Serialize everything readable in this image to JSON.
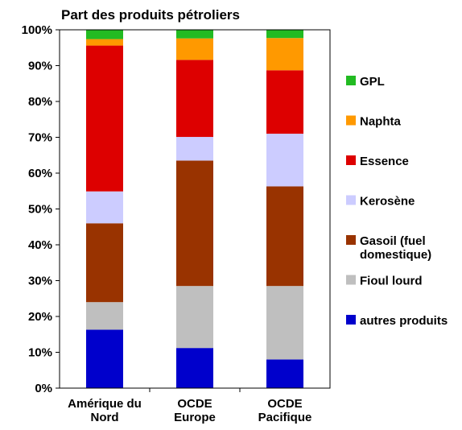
{
  "chart_data": {
    "type": "bar",
    "stacked": true,
    "title": "Part des produits pétroliers",
    "xlabel": "",
    "ylabel": "",
    "ylim": [
      0,
      100
    ],
    "ytick_labels": [
      "0%",
      "10%",
      "20%",
      "30%",
      "40%",
      "50%",
      "60%",
      "70%",
      "80%",
      "90%",
      "100%"
    ],
    "categories": [
      [
        "Amérique du",
        "Nord"
      ],
      [
        "OCDE",
        "Europe"
      ],
      [
        "OCDE",
        "Pacifique"
      ]
    ],
    "series": [
      {
        "name": "autres produits",
        "color": "#0000cc",
        "values": [
          16.3,
          11.2,
          8.0
        ]
      },
      {
        "name": "Fioul lourd",
        "color": "#bfbfbf",
        "values": [
          7.7,
          17.3,
          20.5
        ]
      },
      {
        "name": [
          "Gasoil (fuel",
          "domestique)"
        ],
        "color": "#993300",
        "values": [
          22.0,
          35.0,
          27.8
        ]
      },
      {
        "name": "Kerosène",
        "color": "#ccccff",
        "values": [
          8.9,
          6.6,
          14.7
        ]
      },
      {
        "name": "Essence",
        "color": "#dd0000",
        "values": [
          40.7,
          21.5,
          17.7
        ]
      },
      {
        "name": "Naphta",
        "color": "#ff9900",
        "values": [
          1.8,
          6.0,
          9.0
        ]
      },
      {
        "name": "GPL",
        "color": "#22bb22",
        "values": [
          2.6,
          2.4,
          2.3
        ]
      }
    ],
    "legend_position": "right",
    "grid": false
  }
}
